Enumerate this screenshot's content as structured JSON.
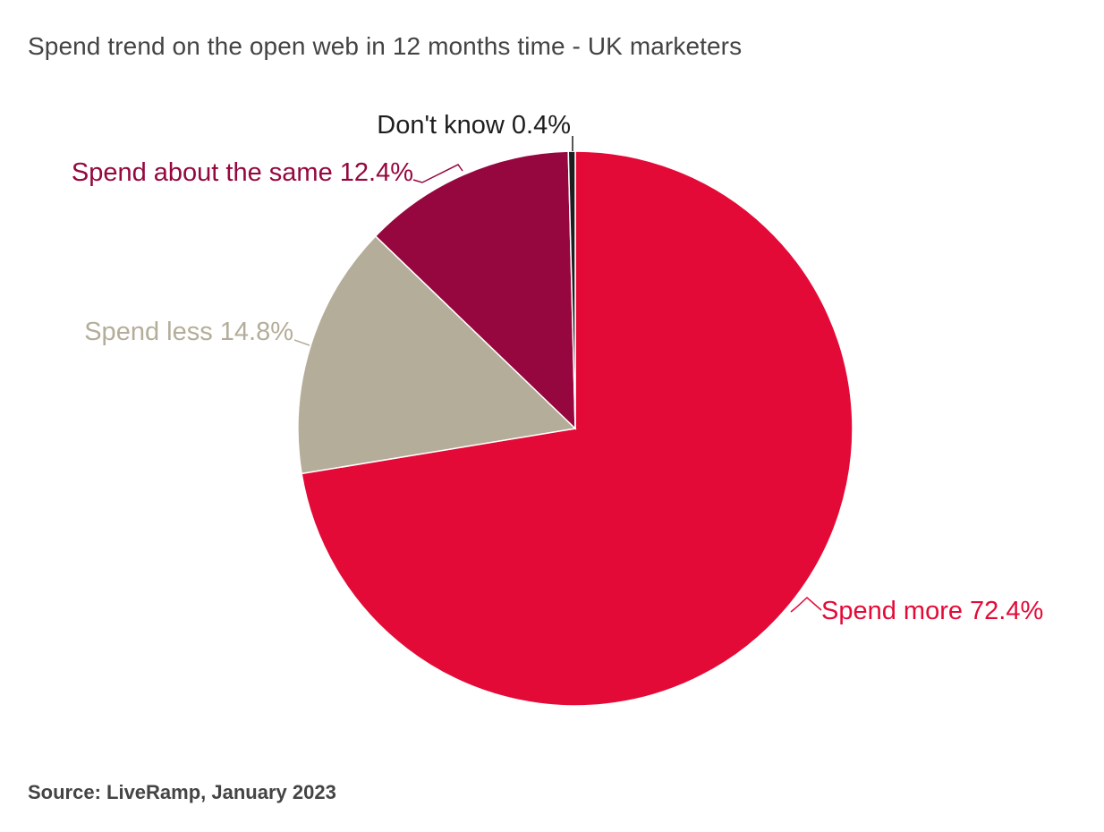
{
  "chart_data": {
    "type": "pie",
    "title": "Spend trend on the open web in 12 months time - UK marketers",
    "source": "Source: LiveRamp, January 2023",
    "start_angle": "top, clockwise",
    "slices": [
      {
        "label": "Spend more",
        "value": 72.4,
        "display": "Spend more 72.4%",
        "color": "#e40a37"
      },
      {
        "label": "Spend less",
        "value": 14.8,
        "display": "Spend less 14.8%",
        "color": "#b4ad99"
      },
      {
        "label": "Spend about the same",
        "value": 12.4,
        "display": "Spend about the same 12.4%",
        "color": "#95073e"
      },
      {
        "label": "Don't know",
        "value": 0.4,
        "display": "Don't know 0.4%",
        "color": "#1e1e1e"
      }
    ]
  }
}
